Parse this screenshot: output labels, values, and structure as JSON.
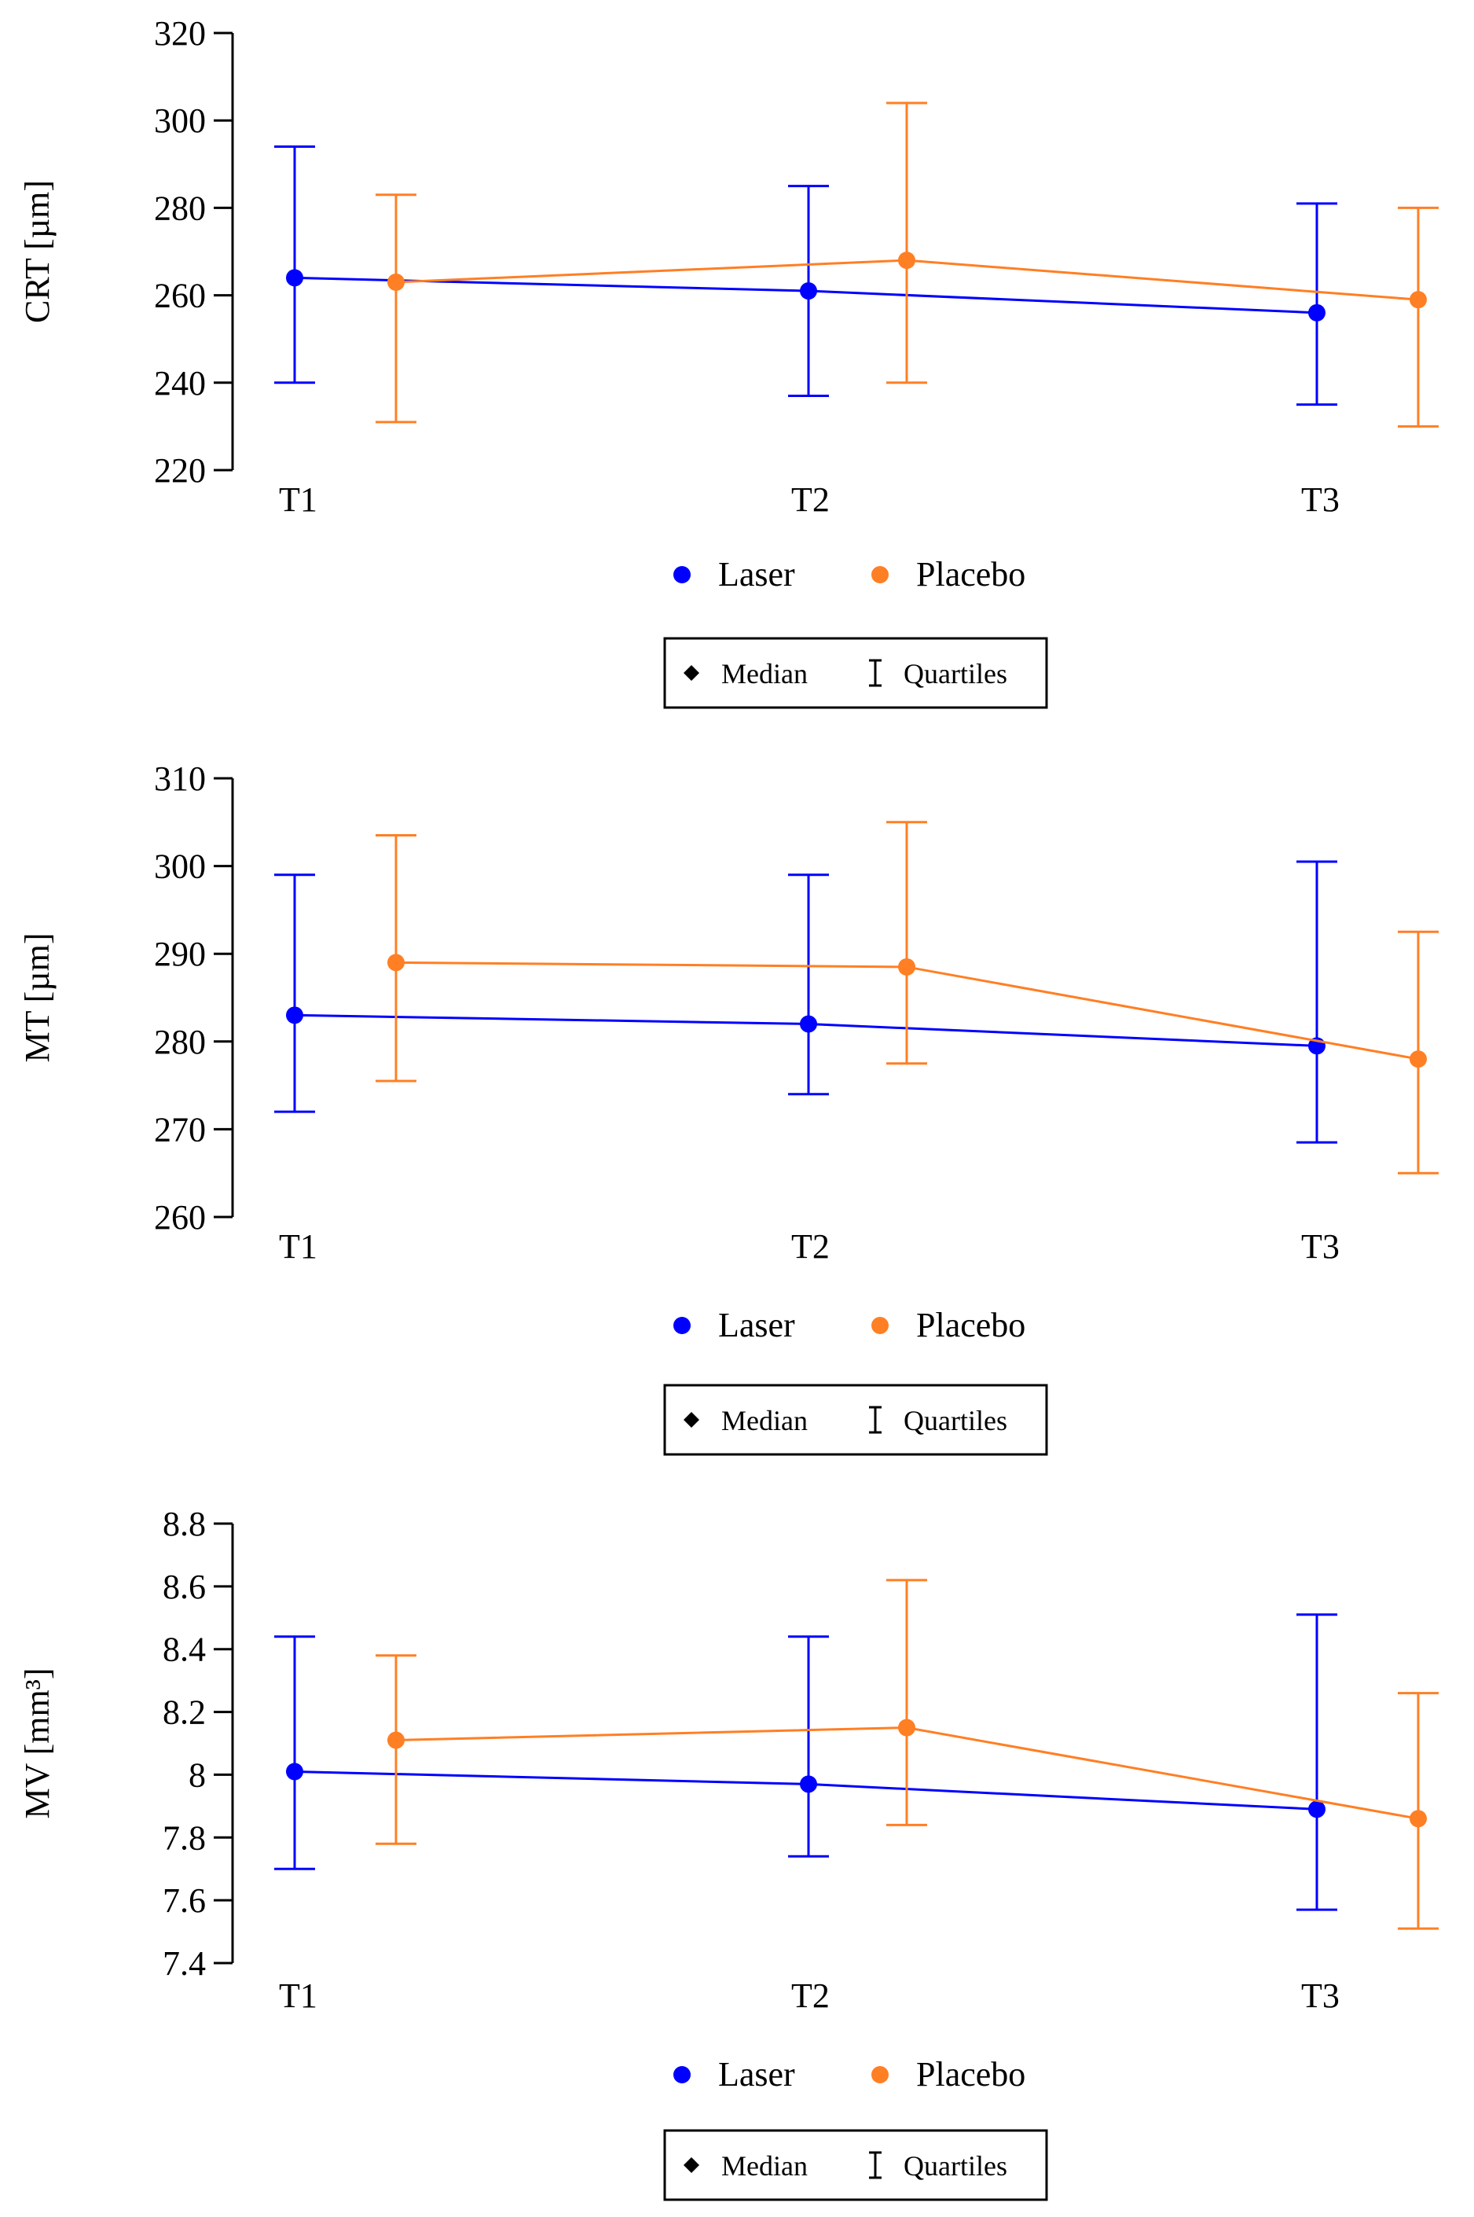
{
  "colors": {
    "laser": "#0000ff",
    "placebo": "#ff7f24",
    "axis": "#000000"
  },
  "legend": {
    "series": [
      "Laser",
      "Placebo"
    ],
    "key": {
      "median": "Median",
      "quartiles": "Quartiles"
    }
  },
  "chart_data": [
    {
      "type": "line",
      "ylabel": "CRT [µm]",
      "categories": [
        "T1",
        "T2",
        "T3"
      ],
      "ylim": [
        220,
        320
      ],
      "yticks": [
        220,
        240,
        260,
        280,
        300,
        320
      ],
      "ytick_labels": [
        "220",
        "240",
        "260",
        "280",
        "300",
        "320"
      ],
      "series": [
        {
          "name": "Laser",
          "median": [
            264,
            261,
            256
          ],
          "q1": [
            240,
            237,
            235
          ],
          "q3": [
            294,
            285,
            281
          ]
        },
        {
          "name": "Placebo",
          "median": [
            263,
            268,
            259
          ],
          "q1": [
            231,
            240,
            230
          ],
          "q3": [
            283,
            304,
            280
          ]
        }
      ]
    },
    {
      "type": "line",
      "ylabel": "MT [µm]",
      "categories": [
        "T1",
        "T2",
        "T3"
      ],
      "ylim": [
        260,
        310
      ],
      "yticks": [
        260,
        270,
        280,
        290,
        300,
        310
      ],
      "ytick_labels": [
        "260",
        "270",
        "280",
        "290",
        "300",
        "310"
      ],
      "series": [
        {
          "name": "Laser",
          "median": [
            283,
            282,
            279.5
          ],
          "q1": [
            272,
            274,
            268.5
          ],
          "q3": [
            299,
            299,
            300.5
          ]
        },
        {
          "name": "Placebo",
          "median": [
            289,
            288.5,
            278
          ],
          "q1": [
            275.5,
            277.5,
            265
          ],
          "q3": [
            303.5,
            305,
            292.5
          ]
        }
      ]
    },
    {
      "type": "line",
      "ylabel": "MV [mm³]",
      "categories": [
        "T1",
        "T2",
        "T3"
      ],
      "ylim": [
        7.4,
        8.8
      ],
      "yticks": [
        7.4,
        7.6,
        7.8,
        8.0,
        8.2,
        8.4,
        8.6,
        8.8
      ],
      "ytick_labels": [
        "7.4",
        "7.6",
        "7.8",
        "8",
        "8.2",
        "8.4",
        "8.6",
        "8.8"
      ],
      "series": [
        {
          "name": "Laser",
          "median": [
            8.01,
            7.97,
            7.89
          ],
          "q1": [
            7.7,
            7.74,
            7.57
          ],
          "q3": [
            8.44,
            8.44,
            8.51
          ]
        },
        {
          "name": "Placebo",
          "median": [
            8.11,
            8.15,
            7.86
          ],
          "q1": [
            7.78,
            7.84,
            7.51
          ],
          "q3": [
            8.38,
            8.62,
            8.26
          ]
        }
      ]
    }
  ]
}
